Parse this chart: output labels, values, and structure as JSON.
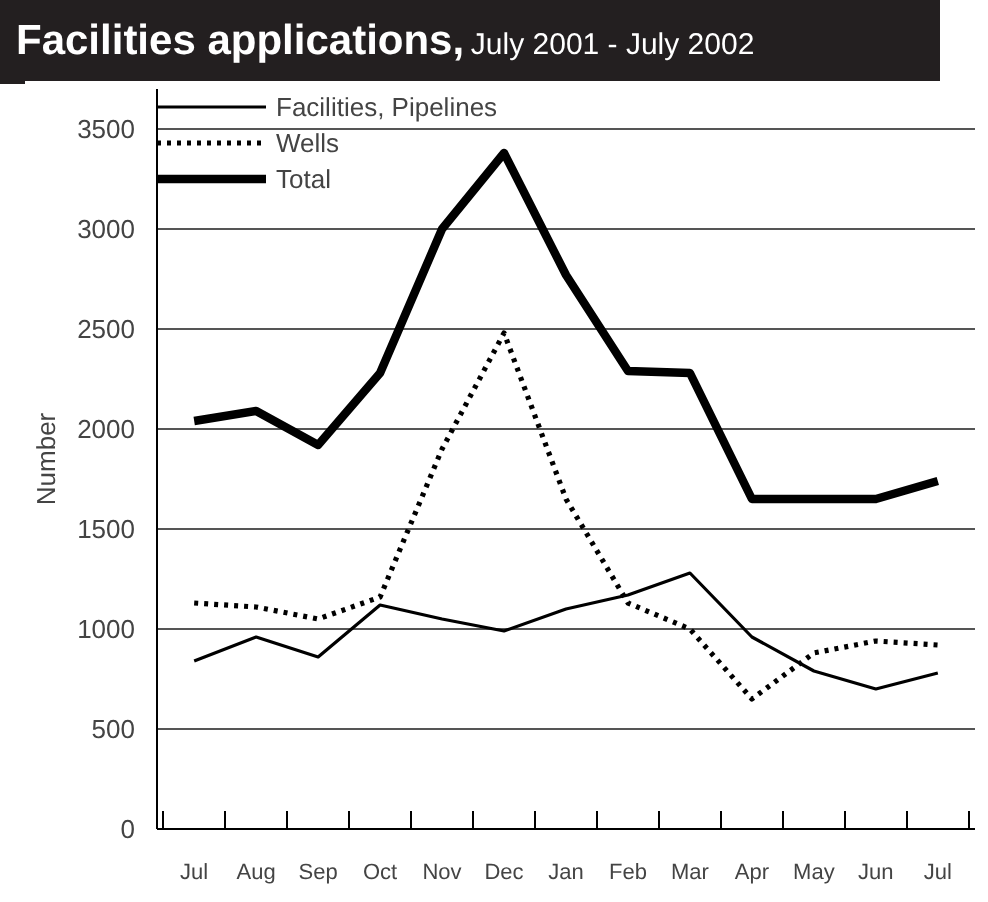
{
  "chart_data": {
    "type": "line",
    "title": "Facilities applications,",
    "subtitle": "July 2001 - July 2002",
    "ylabel": "Number",
    "categories": [
      "Jul",
      "Aug",
      "Sep",
      "Oct",
      "Nov",
      "Dec",
      "Jan",
      "Feb",
      "Mar",
      "Apr",
      "May",
      "Jun",
      "Jul"
    ],
    "series": [
      {
        "name": "Facilities, Pipelines",
        "color": "#000000",
        "line_style": "solid",
        "values": [
          840,
          960,
          860,
          1120,
          1050,
          990,
          1100,
          1170,
          1280,
          960,
          790,
          700,
          780
        ]
      },
      {
        "name": "Wells",
        "color": "#000000",
        "line_style": "dotted",
        "values": [
          1130,
          1110,
          1050,
          1160,
          1900,
          2480,
          1650,
          1130,
          1000,
          650,
          880,
          940,
          920
        ]
      },
      {
        "name": "Total",
        "color": "#000000",
        "line_style": "solid",
        "values": [
          2040,
          2090,
          1920,
          2280,
          3000,
          3380,
          2770,
          2290,
          2280,
          1650,
          1650,
          1650,
          1740
        ]
      }
    ],
    "ylim": [
      0,
      3700
    ],
    "yticks": [
      0,
      500,
      1000,
      1500,
      2000,
      2500,
      3000,
      3500
    ],
    "grid": "y",
    "legend": "top left"
  }
}
